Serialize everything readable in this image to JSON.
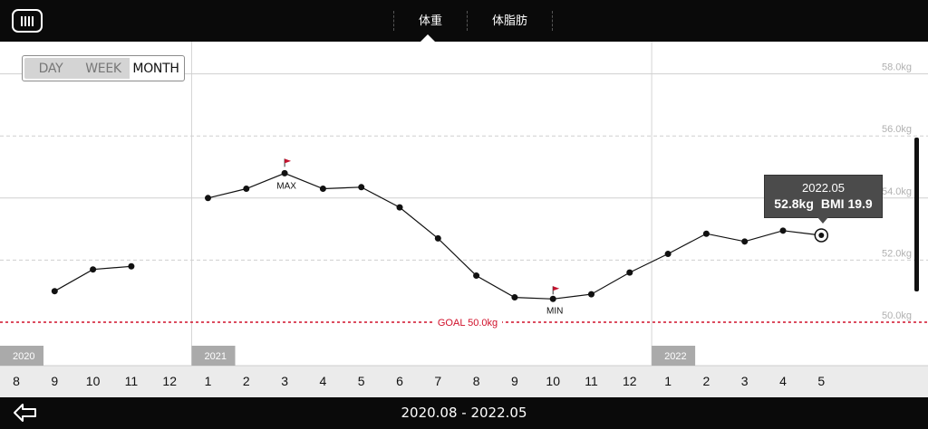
{
  "header": {
    "logo_icon": "app-logo-icon",
    "tabs": [
      {
        "label": "体重",
        "active": true
      },
      {
        "label": "体脂肪",
        "active": false
      }
    ]
  },
  "range_toggle": {
    "options": [
      "DAY",
      "WEEK",
      "MONTH"
    ],
    "selected": "MONTH"
  },
  "chart_data": {
    "type": "line",
    "x_year_labels": [
      {
        "label": "2020",
        "index": 0
      },
      {
        "label": "2021",
        "index": 5
      },
      {
        "label": "2022",
        "index": 17
      }
    ],
    "categories": [
      "8",
      "9",
      "10",
      "11",
      "12",
      "1",
      "2",
      "3",
      "4",
      "5",
      "6",
      "7",
      "8",
      "9",
      "10",
      "11",
      "12",
      "1",
      "2",
      "3",
      "4",
      "5"
    ],
    "months_full": [
      "2020.08",
      "2020.09",
      "2020.10",
      "2020.11",
      "2020.12",
      "2021.01",
      "2021.02",
      "2021.03",
      "2021.04",
      "2021.05",
      "2021.06",
      "2021.07",
      "2021.08",
      "2021.09",
      "2021.10",
      "2021.11",
      "2021.12",
      "2022.01",
      "2022.02",
      "2022.03",
      "2022.04",
      "2022.05"
    ],
    "series": [
      {
        "values": [
          null,
          51.0,
          51.7,
          51.8,
          null,
          54.0,
          54.3,
          54.8,
          54.3,
          54.35,
          53.7,
          52.7,
          51.5,
          50.8,
          50.75,
          50.9,
          51.6,
          52.2,
          52.85,
          52.6,
          52.95,
          52.8
        ]
      }
    ],
    "ylim": [
      50.0,
      58.0
    ],
    "y_ticks": [
      "50.0kg",
      "52.0kg",
      "54.0kg",
      "56.0kg",
      "58.0kg"
    ],
    "goal": {
      "label": "GOAL 50.0kg",
      "value": 50.0,
      "color": "#d0102a"
    },
    "max_marker": {
      "label": "MAX",
      "index": 7
    },
    "min_marker": {
      "label": "MIN",
      "index": 14
    },
    "flag_color": "#c4122e",
    "selected_index": 21,
    "grid": true
  },
  "tooltip": {
    "date": "2022.05",
    "weight": "52.8kg",
    "bmi": "BMI 19.9"
  },
  "footer": {
    "back_icon": "back-arrow-icon",
    "range_text": "2020.08 - 2022.05"
  }
}
